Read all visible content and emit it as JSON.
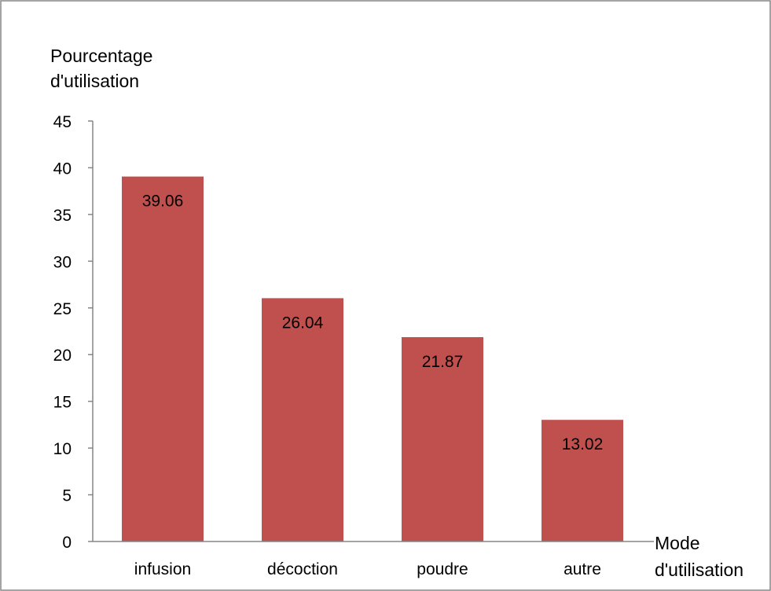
{
  "chart_data": {
    "type": "bar",
    "categories": [
      "infusion",
      "décoction",
      "poudre",
      "autre"
    ],
    "values": [
      39.06,
      26.04,
      21.87,
      13.02
    ],
    "data_labels": [
      "39.06",
      "26.04",
      "21.87",
      "13.02"
    ],
    "ylabel_lines": [
      "Pourcentage",
      "d'utilisation"
    ],
    "xlabel_lines": [
      "Mode",
      "d'utilisation"
    ],
    "ylim": [
      0,
      45
    ],
    "yticks": [
      0,
      5,
      10,
      15,
      20,
      25,
      30,
      35,
      40,
      45
    ],
    "grid": false,
    "legend": "none",
    "colors": {
      "bar": "#c0504d",
      "axis": "#868686",
      "border": "#868686",
      "text": "#000000"
    }
  }
}
